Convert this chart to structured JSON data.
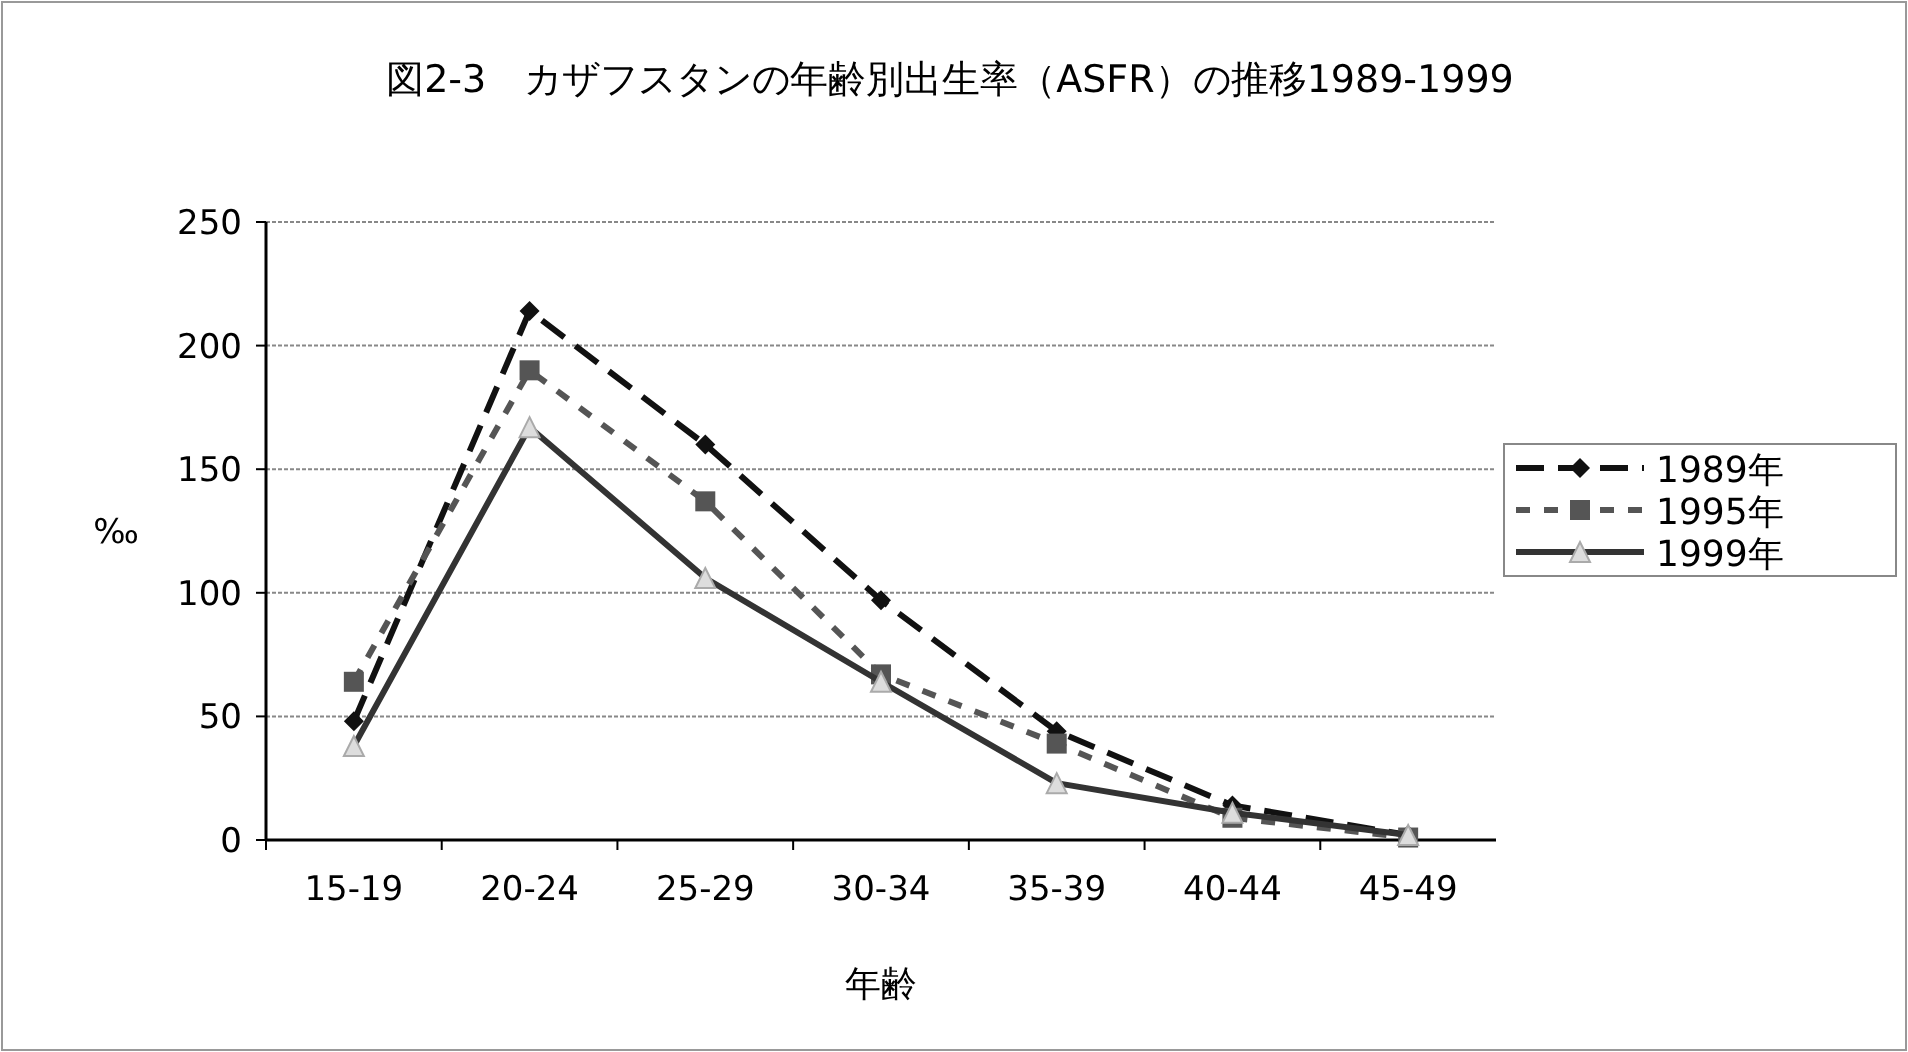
{
  "chart_data": {
    "type": "line",
    "title": "図2-3　カザフスタンの年齢別出生率（ASFR）の推移1989-1999",
    "xlabel": "年齢",
    "ylabel": "‰",
    "categories": [
      "15-19",
      "20-24",
      "25-29",
      "30-34",
      "35-39",
      "40-44",
      "45-49"
    ],
    "series": [
      {
        "name": "1989年",
        "color": "#111111",
        "marker": "diamond",
        "line_style": "dashed",
        "values": [
          48,
          214,
          160,
          97,
          44,
          14,
          2
        ]
      },
      {
        "name": "1995年",
        "color": "#555555",
        "marker": "square",
        "line_style": "dotted",
        "values": [
          64,
          190,
          137,
          67,
          39,
          9,
          1
        ]
      },
      {
        "name": "1999年",
        "color": "#333333",
        "marker": "triangle",
        "line_style": "solid",
        "values": [
          38,
          167,
          106,
          64,
          23,
          11,
          2
        ]
      }
    ],
    "ylim": [
      0,
      250
    ],
    "yticks": [
      0,
      50,
      100,
      150,
      200,
      250
    ],
    "grid": "y",
    "legend": "right"
  }
}
